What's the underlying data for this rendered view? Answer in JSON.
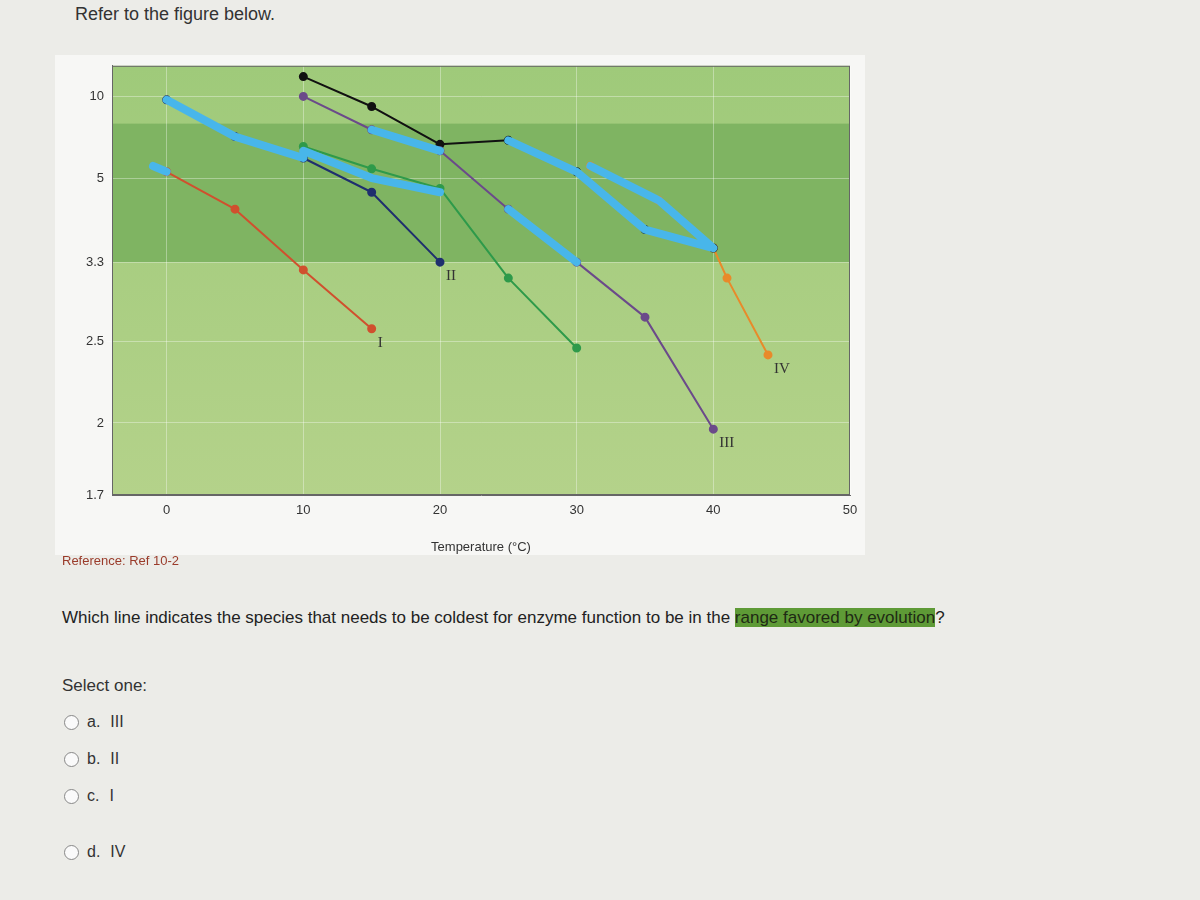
{
  "header": "Refer to the figure below.",
  "chart_data": {
    "type": "line",
    "x_label": "Temperature (°C)",
    "xlim": [
      -4,
      50
    ],
    "xticks": [
      0,
      10,
      20,
      30,
      40,
      50
    ],
    "ylim": [
      1.7,
      16
    ],
    "yticks": [
      10,
      5,
      3.3,
      2.5,
      2,
      1.7
    ],
    "grid": true,
    "marker": "circle",
    "shaded_range": [
      3.3,
      7.5
    ],
    "series": [
      {
        "color": "#48b6ea",
        "marker": "none",
        "x": [
          -1,
          0,
          null,
          0,
          5,
          10,
          null,
          10,
          15,
          20,
          null,
          15,
          20,
          null,
          25,
          30,
          null,
          25,
          30,
          null,
          30,
          35,
          40,
          null,
          31,
          36,
          40
        ],
        "values": [
          5.4,
          5.2,
          null,
          9.6,
          6.7,
          5.7,
          null,
          6.0,
          5.0,
          4.6,
          null,
          7.1,
          6.0,
          null,
          6.5,
          5.2,
          null,
          4.2,
          3.3,
          null,
          5.2,
          3.8,
          3.5,
          null,
          5.4,
          4.4,
          3.5
        ]
      },
      {
        "name": "I",
        "color": "#d0502e",
        "x": [
          0,
          5,
          10,
          15
        ],
        "values": [
          5.2,
          4.2,
          3.2,
          2.6
        ]
      },
      {
        "name": "II",
        "color": "#1f2f6e",
        "x": [
          0,
          5,
          10,
          15,
          20
        ],
        "values": [
          9.6,
          6.7,
          5.7,
          4.6,
          3.3
        ]
      },
      {
        "color": "#2e9a4a",
        "x": [
          10,
          15,
          20,
          25,
          30
        ],
        "values": [
          6.2,
          5.3,
          4.7,
          3.1,
          2.45
        ]
      },
      {
        "name": "III",
        "color": "#6b4a8a",
        "x": [
          10,
          15,
          20,
          25,
          30,
          35,
          40
        ],
        "values": [
          10,
          7.1,
          6.0,
          4.2,
          3.3,
          2.7,
          1.97
        ]
      },
      {
        "color": "#111111",
        "x": [
          10,
          15,
          20,
          25,
          30,
          35,
          40
        ],
        "values": [
          13.2,
          8.9,
          6.3,
          6.5,
          5.2,
          3.8,
          3.5
        ]
      },
      {
        "name": "IV",
        "color": "#e88a2a",
        "x": [
          31,
          36,
          40,
          41,
          44
        ],
        "values": [
          5.4,
          4.4,
          3.5,
          3.1,
          2.4
        ]
      }
    ]
  },
  "reference": "Reference: Ref 10-2",
  "question": {
    "before": "Which line indicates the species that needs to be coldest for enzyme function to be in the ",
    "highlight": "range favored by evolution",
    "after": "?"
  },
  "prompt": "Select one:",
  "options": [
    {
      "letter": "a.",
      "text": "III"
    },
    {
      "letter": "b.",
      "text": "II"
    },
    {
      "letter": "c.",
      "text": "I"
    },
    {
      "letter": "d.",
      "text": "IV"
    }
  ]
}
